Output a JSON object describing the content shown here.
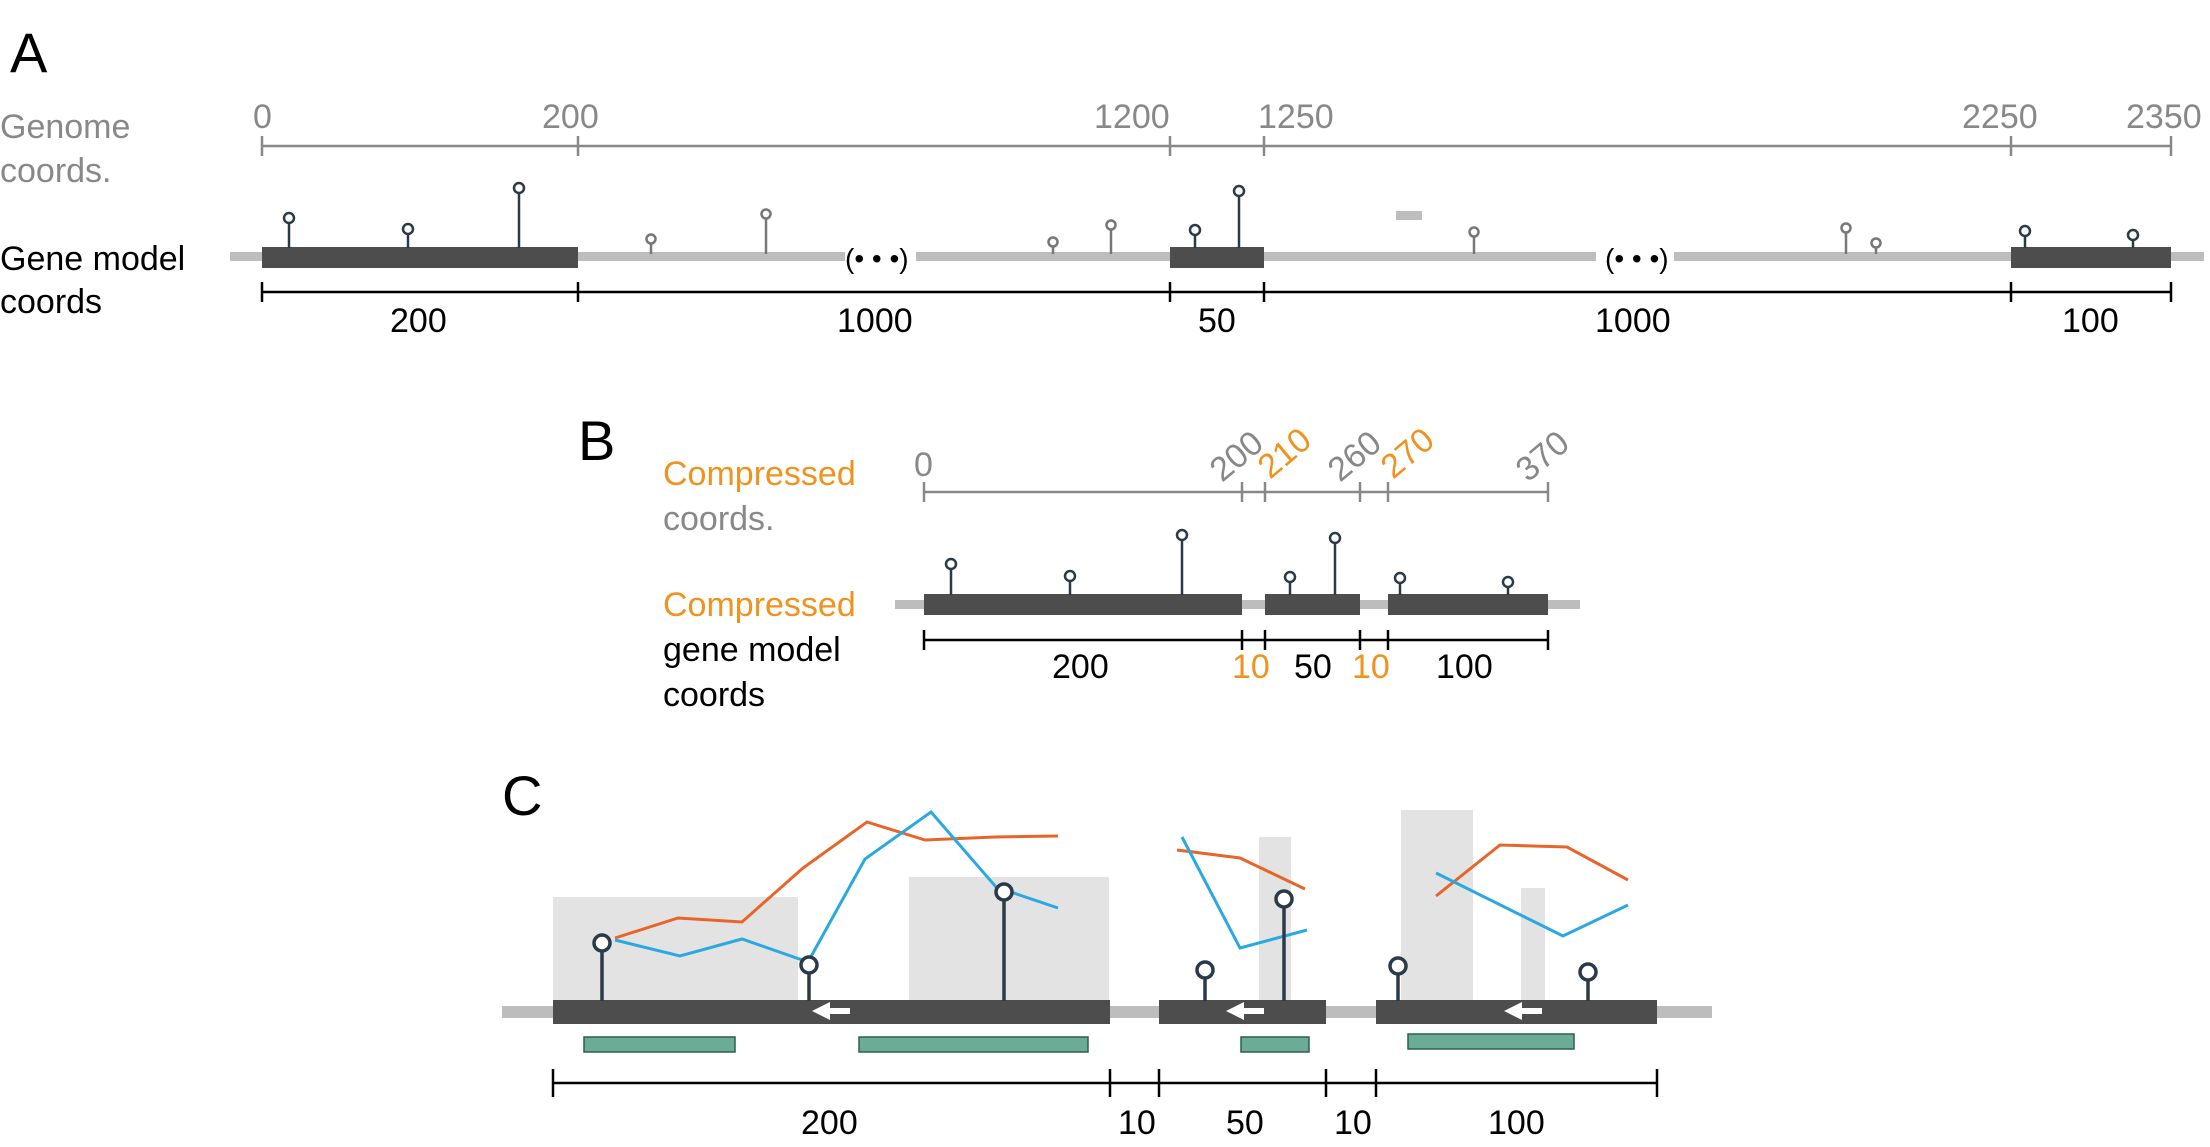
{
  "colors": {
    "exon": "#4d4d4d",
    "intron": "#bdbdbd",
    "ruler_gray": "#888888",
    "ruler_black": "#000000",
    "lollipop_dark": "#2b3a48",
    "lollipop_light": "#777777",
    "accent_orange": "#f0921e",
    "line_orange": "#e8652a",
    "line_blue": "#2aa8e0",
    "bar_gray": "#e3e3e3",
    "domain_green": "#6aac95"
  },
  "panel_a": {
    "letter": "A",
    "genome_label": [
      "Genome",
      "coords."
    ],
    "gene_label": [
      "Gene model",
      "coords"
    ],
    "genome_ticks": [
      "0",
      "200",
      "1200",
      "1250",
      "2250",
      "2350"
    ],
    "ellipsis": [
      "(• • •)",
      "(• • •)"
    ],
    "segment_lengths": [
      "200",
      "1000",
      "50",
      "1000",
      "100"
    ]
  },
  "panel_b": {
    "letter": "B",
    "compressed_word": "Compressed",
    "coords_word": "coords.",
    "gene_label_rest": [
      "gene model",
      "coords"
    ],
    "ticks": [
      "0",
      "200",
      "210",
      "260",
      "270",
      "370"
    ],
    "segment_lengths": [
      "200",
      "10",
      "50",
      "10",
      "100"
    ]
  },
  "panel_c": {
    "letter": "C",
    "segment_lengths": [
      "200",
      "10",
      "50",
      "10",
      "100"
    ]
  }
}
